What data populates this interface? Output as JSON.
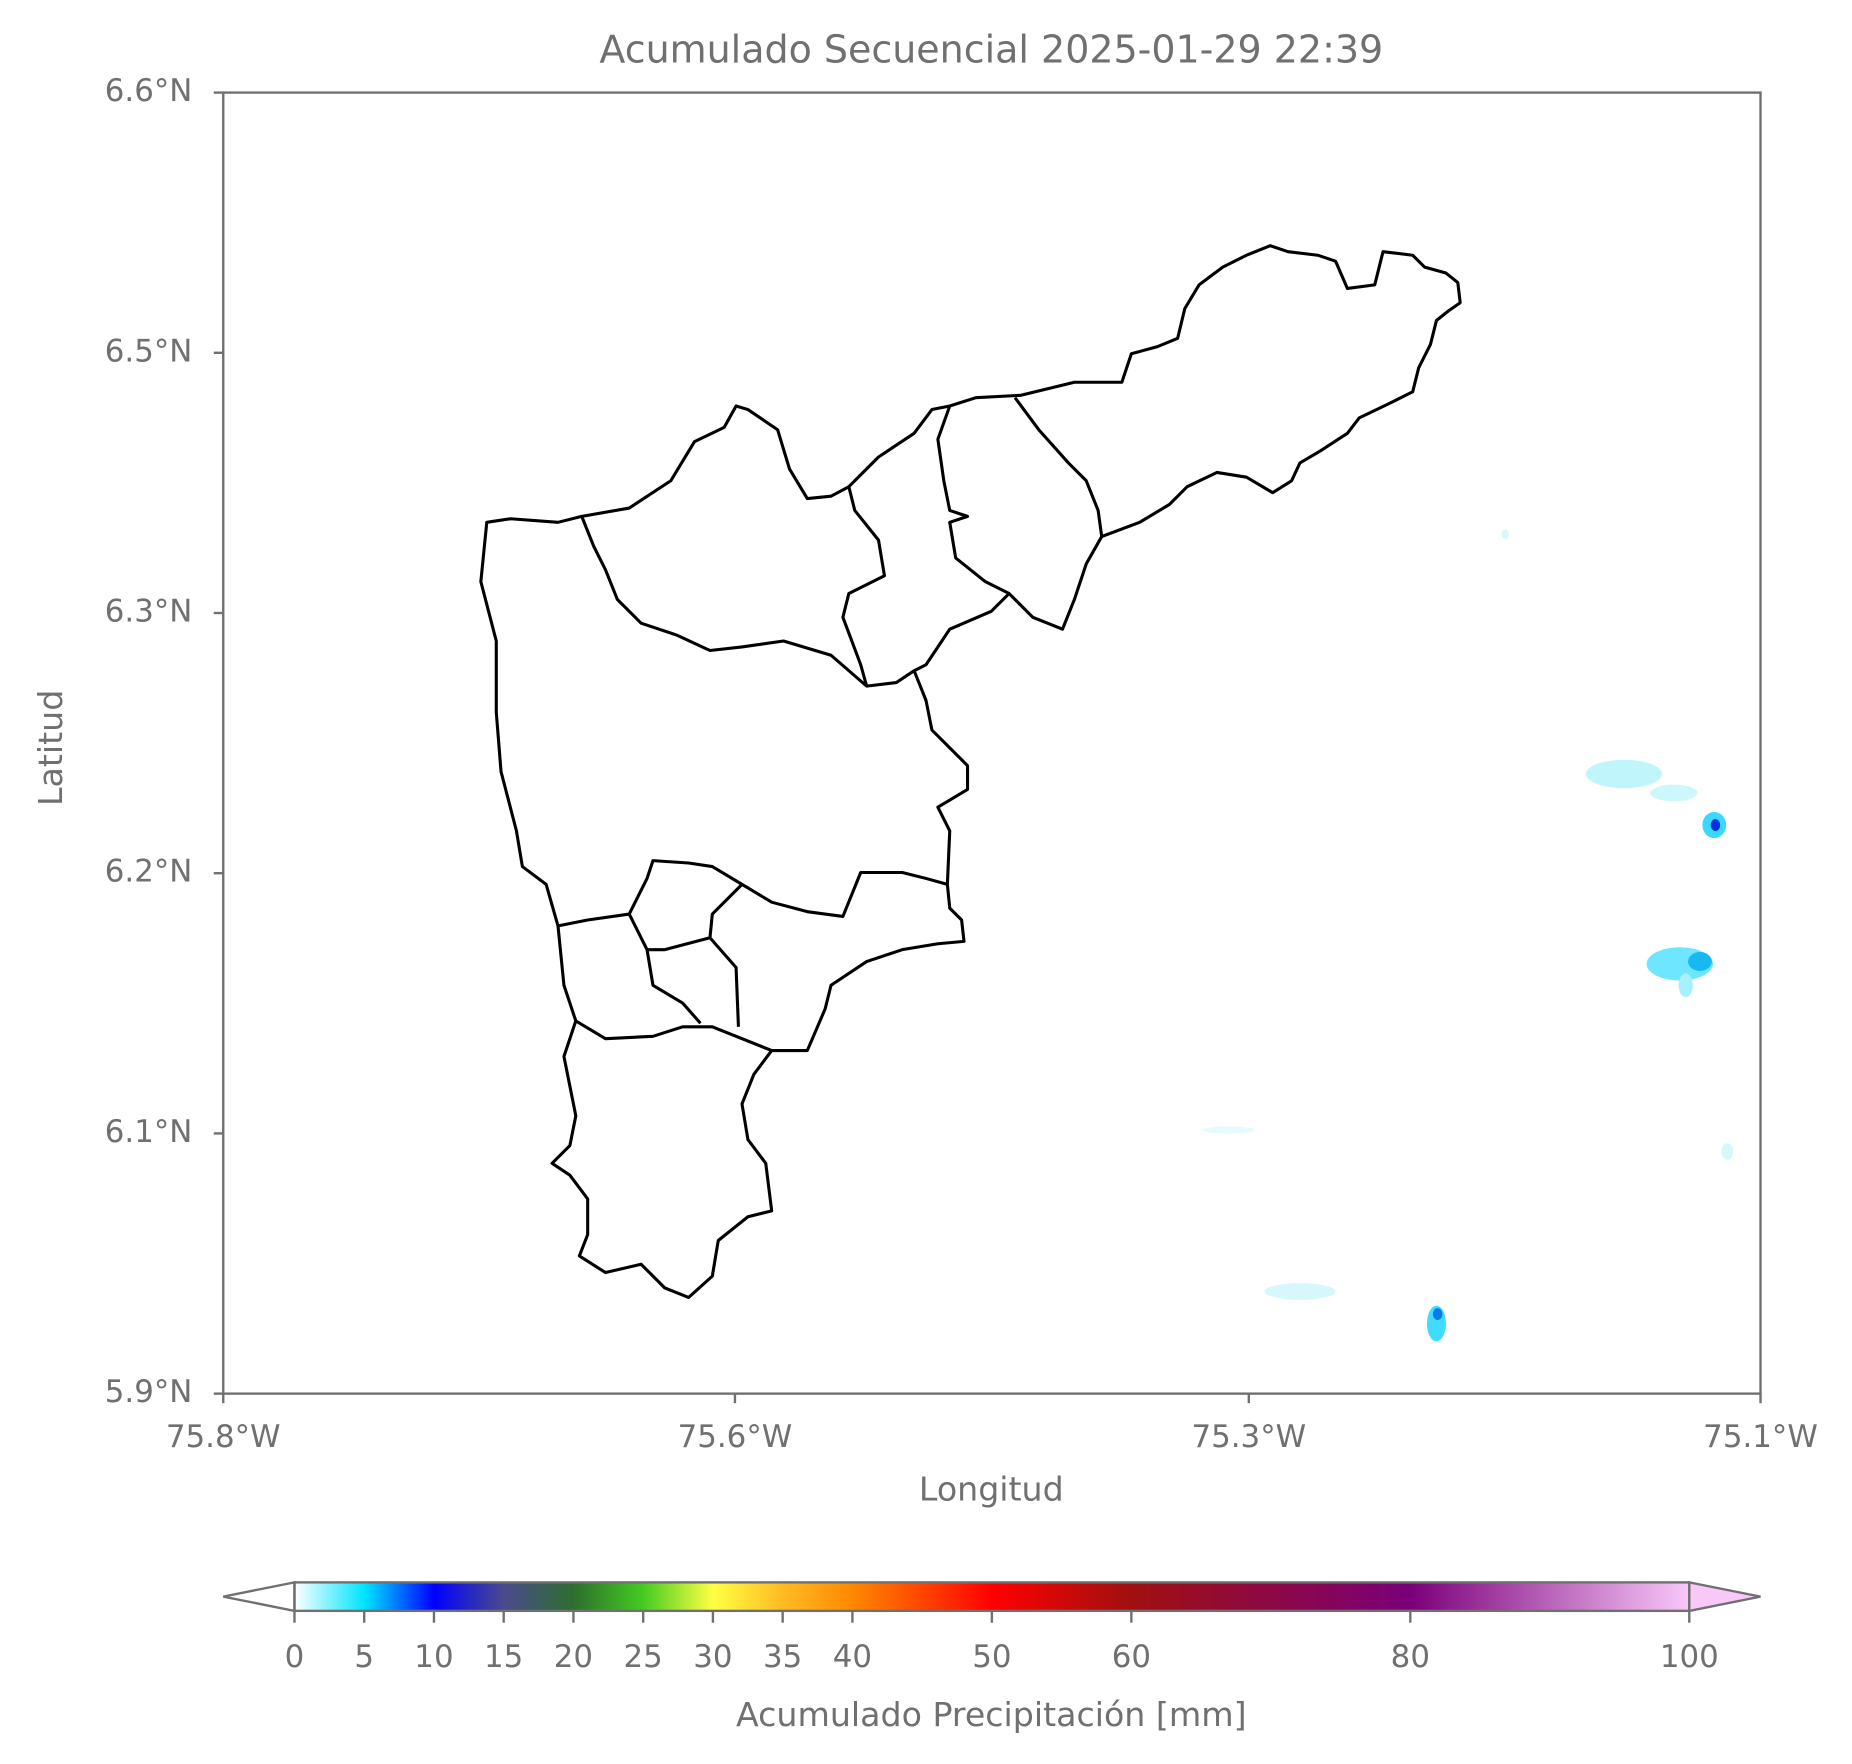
{
  "chart_data": {
    "type": "map",
    "title": "Acumulado Secuencial 2025-01-29 22:39",
    "x_label": "Longitud",
    "y_label": "Latitud",
    "xlim": [
      -75.8,
      -75.1
    ],
    "ylim": [
      5.912,
      6.612
    ],
    "xticks": [
      {
        "value": -75.8,
        "label": "75.8°W"
      },
      {
        "value": -75.567,
        "label": "75.6°W"
      },
      {
        "value": -75.333,
        "label": "75.3°W"
      },
      {
        "value": -75.1,
        "label": "75.1°W"
      }
    ],
    "yticks": [
      {
        "value": 6.612,
        "label": "6.6°N"
      },
      {
        "value": 6.472,
        "label": "6.5°N"
      },
      {
        "value": 6.332,
        "label": "6.3°N"
      },
      {
        "value": 6.192,
        "label": "6.2°N"
      },
      {
        "value": 6.052,
        "label": "6.1°N"
      },
      {
        "value": 5.912,
        "label": "5.9°N"
      }
    ],
    "colorbar": {
      "label": "Acumulado Precipitación [mm]",
      "lim": [
        0,
        100
      ],
      "ticks": [
        0,
        5,
        10,
        15,
        20,
        25,
        30,
        35,
        40,
        50,
        60,
        80,
        100
      ],
      "colors": [
        "#ffffff",
        "#00e5ff",
        "#0000ff",
        "#4a4a8c",
        "#2e6e2e",
        "#44cc22",
        "#ffff44",
        "#ffbb22",
        "#ff8800",
        "#ff0000",
        "#a01010",
        "#7a007a",
        "#f8c8f8"
      ]
    }
  }
}
